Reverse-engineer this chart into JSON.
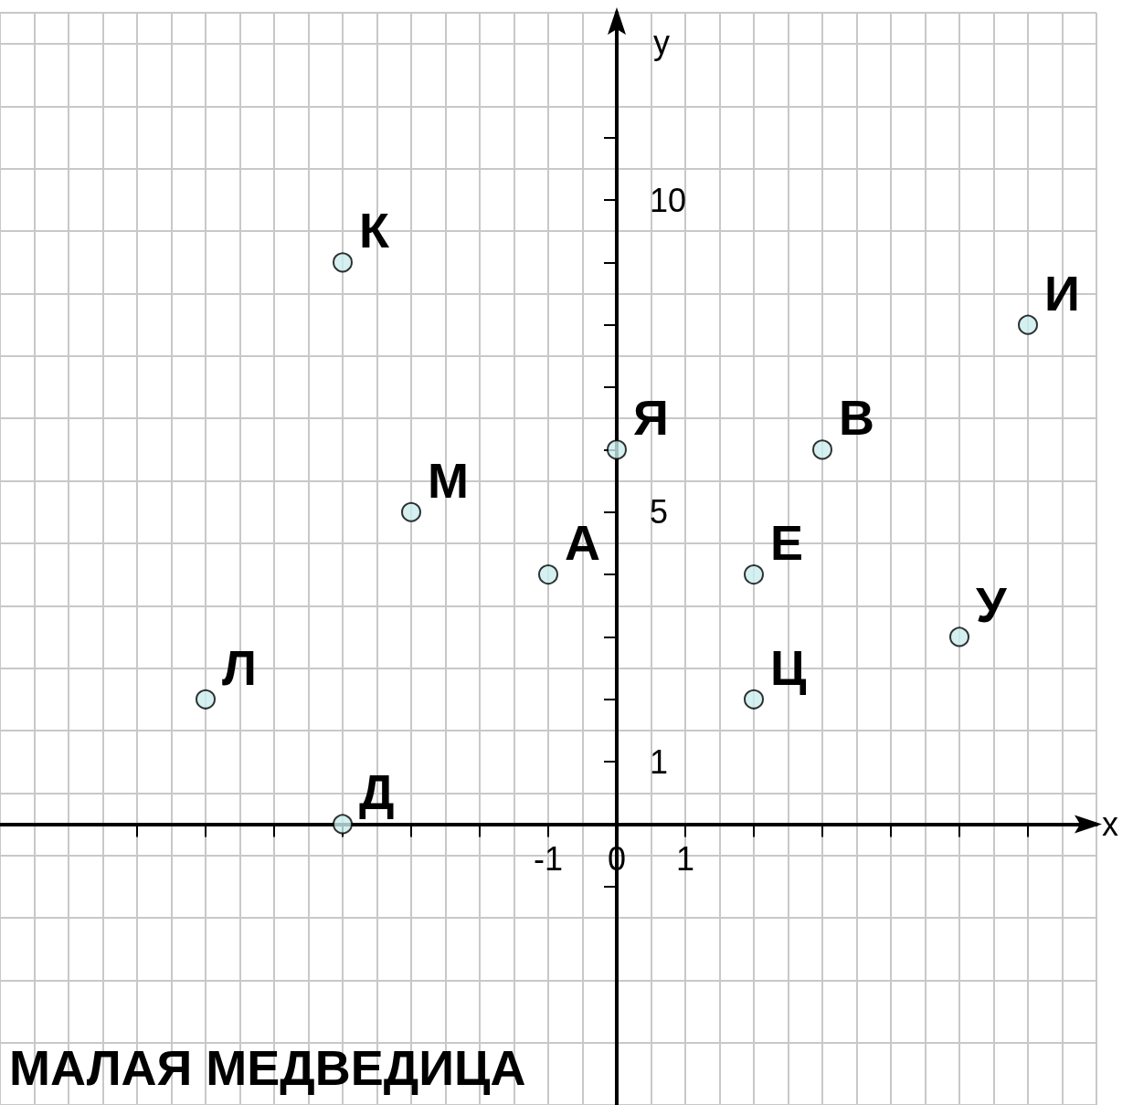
{
  "chart_data": {
    "type": "scatter",
    "xlabel": "x",
    "ylabel": "y",
    "x": [
      -4,
      6,
      0,
      3,
      -3,
      -1,
      2,
      5,
      -6,
      2,
      -4
    ],
    "values": [
      9,
      8,
      6,
      6,
      5,
      4,
      4,
      3,
      2,
      2,
      0
    ],
    "color": "#c9ecec",
    "marker": "circle",
    "xlim": [
      -9,
      7
    ],
    "ylim": [
      -4.5,
      13
    ],
    "xticks": [
      {
        "value": -7,
        "label": null
      },
      {
        "value": -6,
        "label": null
      },
      {
        "value": -5,
        "label": null
      },
      {
        "value": -4,
        "label": null
      },
      {
        "value": -3,
        "label": null
      },
      {
        "value": -2,
        "label": null
      },
      -1,
      0,
      1,
      {
        "value": 2,
        "label": null
      },
      {
        "value": 3,
        "label": null
      },
      {
        "value": 4,
        "label": null
      },
      {
        "value": 5,
        "label": null
      },
      {
        "value": 6,
        "label": null
      }
    ],
    "yticks": [
      {
        "value": -1,
        "label": null
      },
      1,
      {
        "value": 2,
        "label": null
      },
      {
        "value": 3,
        "label": null
      },
      {
        "value": 4,
        "label": null
      },
      5,
      {
        "value": 6,
        "label": null
      },
      {
        "value": 7,
        "label": null
      },
      {
        "value": 8,
        "label": null
      },
      {
        "value": 9,
        "label": null
      },
      10,
      {
        "value": 11,
        "label": null
      }
    ],
    "grid": true,
    "annotations": [
      {
        "text": "К",
        "x": -4,
        "y": 9
      },
      {
        "text": "И",
        "x": 6,
        "y": 8
      },
      {
        "text": "Я",
        "x": 0,
        "y": 6
      },
      {
        "text": "В",
        "x": 3,
        "y": 6
      },
      {
        "text": "М",
        "x": -3,
        "y": 5
      },
      {
        "text": "А",
        "x": -1,
        "y": 4
      },
      {
        "text": "Е",
        "x": 2,
        "y": 4
      },
      {
        "text": "У",
        "x": 5,
        "y": 3
      },
      {
        "text": "Л",
        "x": -6,
        "y": 2
      },
      {
        "text": "Ц",
        "x": 2,
        "y": 2
      },
      {
        "text": "Д",
        "x": -4,
        "y": 0
      },
      "МАЛАЯ МЕДВЕДИЦА"
    ]
  }
}
